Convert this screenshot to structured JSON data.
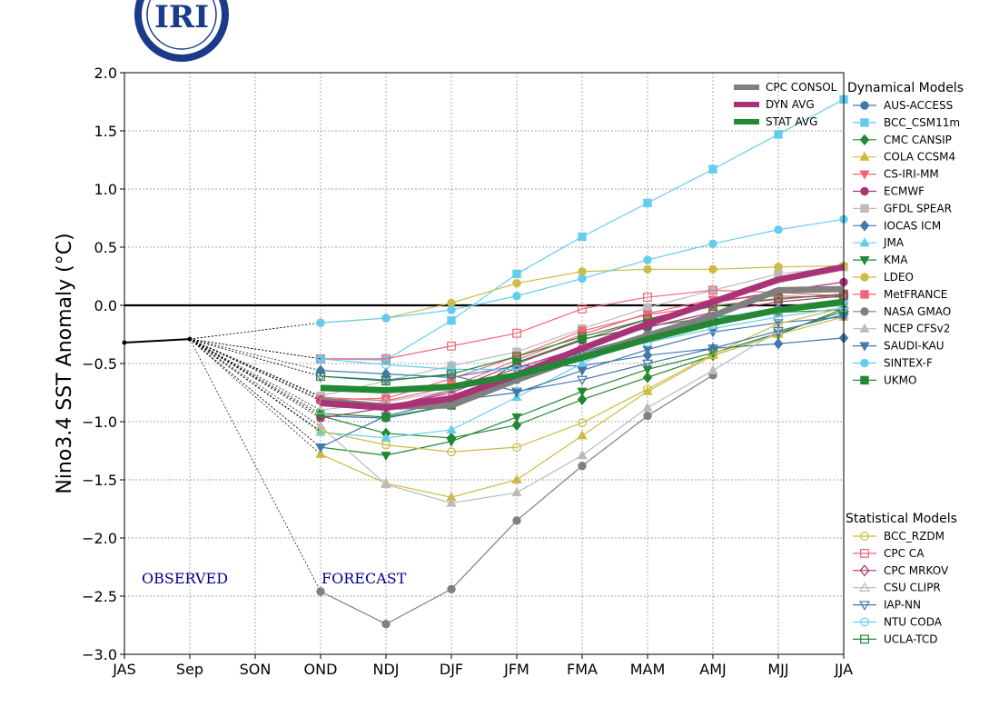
{
  "logo": {
    "text": "IRI"
  },
  "chart_data": {
    "type": "line",
    "title": "",
    "ylabel": "Nino3.4 SST Anomaly (°C)",
    "xlabel": "",
    "categories": [
      "JAS",
      "Sep",
      "SON",
      "OND",
      "NDJ",
      "DJF",
      "JFM",
      "FMA",
      "MAM",
      "AMJ",
      "MJJ",
      "JJA"
    ],
    "ylim": [
      -3.0,
      2.0
    ],
    "yticks": [
      -3.0,
      -2.5,
      -2.0,
      -1.5,
      -1.0,
      -0.5,
      0.0,
      0.5,
      1.0,
      1.5,
      2.0
    ],
    "ytick_labels": [
      "−3.0",
      "−2.5",
      "−2.0",
      "−1.5",
      "−1.0",
      "−0.5",
      "0.0",
      "0.5",
      "1.0",
      "1.5",
      "2.0"
    ],
    "grid": true,
    "annotations": {
      "observed": "OBSERVED",
      "forecast": "FORECAST"
    },
    "observed": {
      "x": [
        0,
        1
      ],
      "values": [
        -0.32,
        -0.29
      ]
    },
    "consensus_title": "",
    "consensus": [
      {
        "name": "CPC CONSOL",
        "color": "#808080",
        "values": [
          -0.82,
          -0.87,
          -0.86,
          -0.64,
          -0.44,
          -0.26,
          -0.09,
          0.13,
          0.14
        ]
      },
      {
        "name": "DYN AVG",
        "color": "#aa3377",
        "values": [
          -0.84,
          -0.88,
          -0.8,
          -0.6,
          -0.37,
          -0.16,
          0.03,
          0.22,
          0.33
        ]
      },
      {
        "name": "STAT AVG",
        "color": "#228833",
        "values": [
          -0.71,
          -0.73,
          -0.7,
          -0.6,
          -0.45,
          -0.29,
          -0.15,
          -0.04,
          0.03
        ]
      }
    ],
    "dynamical_title": "Dynamical Models",
    "dynamical": [
      {
        "name": "AUS-ACCESS",
        "color": "#4477aa",
        "marker": "circle",
        "values": [
          -0.95,
          -0.97,
          -0.86,
          -0.64,
          -0.4,
          -0.25,
          -0.12,
          -0.03,
          0.02
        ]
      },
      {
        "name": "BCC_CSM11m",
        "color": "#66ccee",
        "marker": "square",
        "values": [
          -0.46,
          -0.47,
          -0.13,
          0.27,
          0.59,
          0.88,
          1.17,
          1.47,
          1.77
        ]
      },
      {
        "name": "CMC CANSIP",
        "color": "#228833",
        "marker": "diamond",
        "values": [
          -0.95,
          -1.1,
          -1.14,
          -1.03,
          -0.81,
          -0.62,
          -0.43,
          -0.25,
          -0.03
        ]
      },
      {
        "name": "COLA CCSM4",
        "color": "#ccbb44",
        "marker": "triangle-up",
        "values": [
          -1.28,
          -1.53,
          -1.65,
          -1.5,
          -1.12,
          -0.74,
          -0.43,
          -0.25,
          -0.1
        ]
      },
      {
        "name": "CS-IRI-MM",
        "color": "#ee6677",
        "marker": "triangle-down",
        "values": [
          -0.79,
          -0.82,
          -0.7,
          -0.47,
          -0.25,
          -0.07,
          0.05,
          0.08,
          0.07
        ]
      },
      {
        "name": "ECMWF",
        "color": "#aa3377",
        "marker": "circle",
        "values": [
          -0.97,
          -0.88,
          -0.73,
          -0.5,
          -0.3,
          -0.12,
          0.02,
          0.12,
          0.2
        ]
      },
      {
        "name": "GFDL SPEAR",
        "color": "#bbbbbb",
        "marker": "square",
        "values": [
          -0.78,
          -0.65,
          -0.52,
          -0.4,
          -0.2,
          -0.02,
          0.13,
          0.27,
          0.33
        ]
      },
      {
        "name": "IOCAS ICM",
        "color": "#4477aa",
        "marker": "diamond",
        "values": [
          -0.56,
          -0.59,
          -0.62,
          -0.52,
          -0.52,
          -0.43,
          -0.37,
          -0.33,
          -0.28
        ]
      },
      {
        "name": "JMA",
        "color": "#66ccee",
        "marker": "triangle-up",
        "values": [
          -1.09,
          -1.14,
          -1.07,
          -0.79,
          -0.5,
          -0.25,
          -0.12,
          -0.02,
          0.05
        ]
      },
      {
        "name": "KMA",
        "color": "#228833",
        "marker": "triangle-down",
        "values": [
          -1.22,
          -1.29,
          -1.17,
          -0.96,
          -0.74,
          -0.55,
          -0.41,
          -0.24,
          -0.05
        ]
      },
      {
        "name": "LDEO",
        "color": "#ccbb44",
        "marker": "circle",
        "values": [
          -0.15,
          -0.11,
          0.02,
          0.19,
          0.29,
          0.31,
          0.31,
          0.33,
          0.34
        ]
      },
      {
        "name": "MetFRANCE",
        "color": "#ee6677",
        "marker": "square",
        "values": [
          -0.81,
          -0.8,
          -0.63,
          -0.44,
          -0.22,
          -0.08,
          0.0,
          0.05,
          0.1
        ]
      },
      {
        "name": "NASA GMAO",
        "color": "#808080",
        "marker": "circle",
        "values": [
          -2.46,
          -2.74,
          -2.44,
          -1.85,
          -1.38,
          -0.95,
          -0.6,
          null,
          null
        ]
      },
      {
        "name": "NCEP CFSv2",
        "color": "#bbbbbb",
        "marker": "triangle-up",
        "values": [
          -1.04,
          -1.54,
          -1.7,
          -1.61,
          -1.29,
          -0.88,
          -0.56,
          -0.22,
          -0.08
        ]
      },
      {
        "name": "SAUDI-KAU",
        "color": "#4477aa",
        "marker": "triangle-down",
        "values": [
          -1.22,
          -0.95,
          -0.82,
          -0.75,
          -0.56,
          -0.38,
          -0.23,
          -0.15,
          -0.1
        ]
      },
      {
        "name": "SINTEX-F",
        "color": "#66ccee",
        "marker": "circle",
        "values": [
          -0.15,
          -0.11,
          -0.04,
          0.08,
          0.23,
          0.39,
          0.53,
          0.65,
          0.74
        ]
      },
      {
        "name": "UKMO",
        "color": "#228833",
        "marker": "square",
        "values": [
          -0.93,
          -0.96,
          -0.86,
          -0.49,
          -0.29,
          -0.18,
          -0.1,
          -0.06,
          -0.04
        ]
      }
    ],
    "statistical_title": "Statistical Models",
    "statistical": [
      {
        "name": "BCC_RZDM",
        "color": "#ccbb44",
        "marker": "circle",
        "values": [
          -1.08,
          -1.2,
          -1.26,
          -1.22,
          -1.01,
          -0.72,
          -0.42,
          -0.16,
          -0.02
        ]
      },
      {
        "name": "CPC CA",
        "color": "#ee6677",
        "marker": "square",
        "values": [
          -0.46,
          -0.46,
          -0.35,
          -0.24,
          -0.03,
          0.07,
          0.13,
          0.11,
          0.08
        ]
      },
      {
        "name": "CPC MRKOV",
        "color": "#aa3377",
        "marker": "diamond",
        "values": [
          -0.82,
          -0.88,
          -0.75,
          -0.54,
          -0.36,
          -0.19,
          -0.06,
          0.03,
          0.08
        ]
      },
      {
        "name": "CSU CLIPR",
        "color": "#bbbbbb",
        "marker": "triangle-up",
        "values": [
          -0.9,
          -0.83,
          -0.73,
          -0.6,
          -0.44,
          -0.28,
          -0.16,
          -0.06,
          0.0
        ]
      },
      {
        "name": "IAP-NN",
        "color": "#4477aa",
        "marker": "triangle-down",
        "values": [
          -0.61,
          -0.64,
          -0.6,
          -0.74,
          -0.64,
          -0.5,
          -0.37,
          -0.22,
          -0.08
        ]
      },
      {
        "name": "NTU CODA",
        "color": "#66ccee",
        "marker": "circle",
        "values": [
          -0.46,
          -0.51,
          -0.55,
          -0.55,
          -0.42,
          -0.32,
          -0.2,
          -0.1,
          -0.02
        ]
      },
      {
        "name": "UCLA-TCD",
        "color": "#228833",
        "marker": "square",
        "values": [
          -0.61,
          -0.65,
          -0.59,
          -0.44,
          -0.27,
          -0.12,
          -0.01,
          0.06,
          0.09
        ]
      }
    ]
  }
}
